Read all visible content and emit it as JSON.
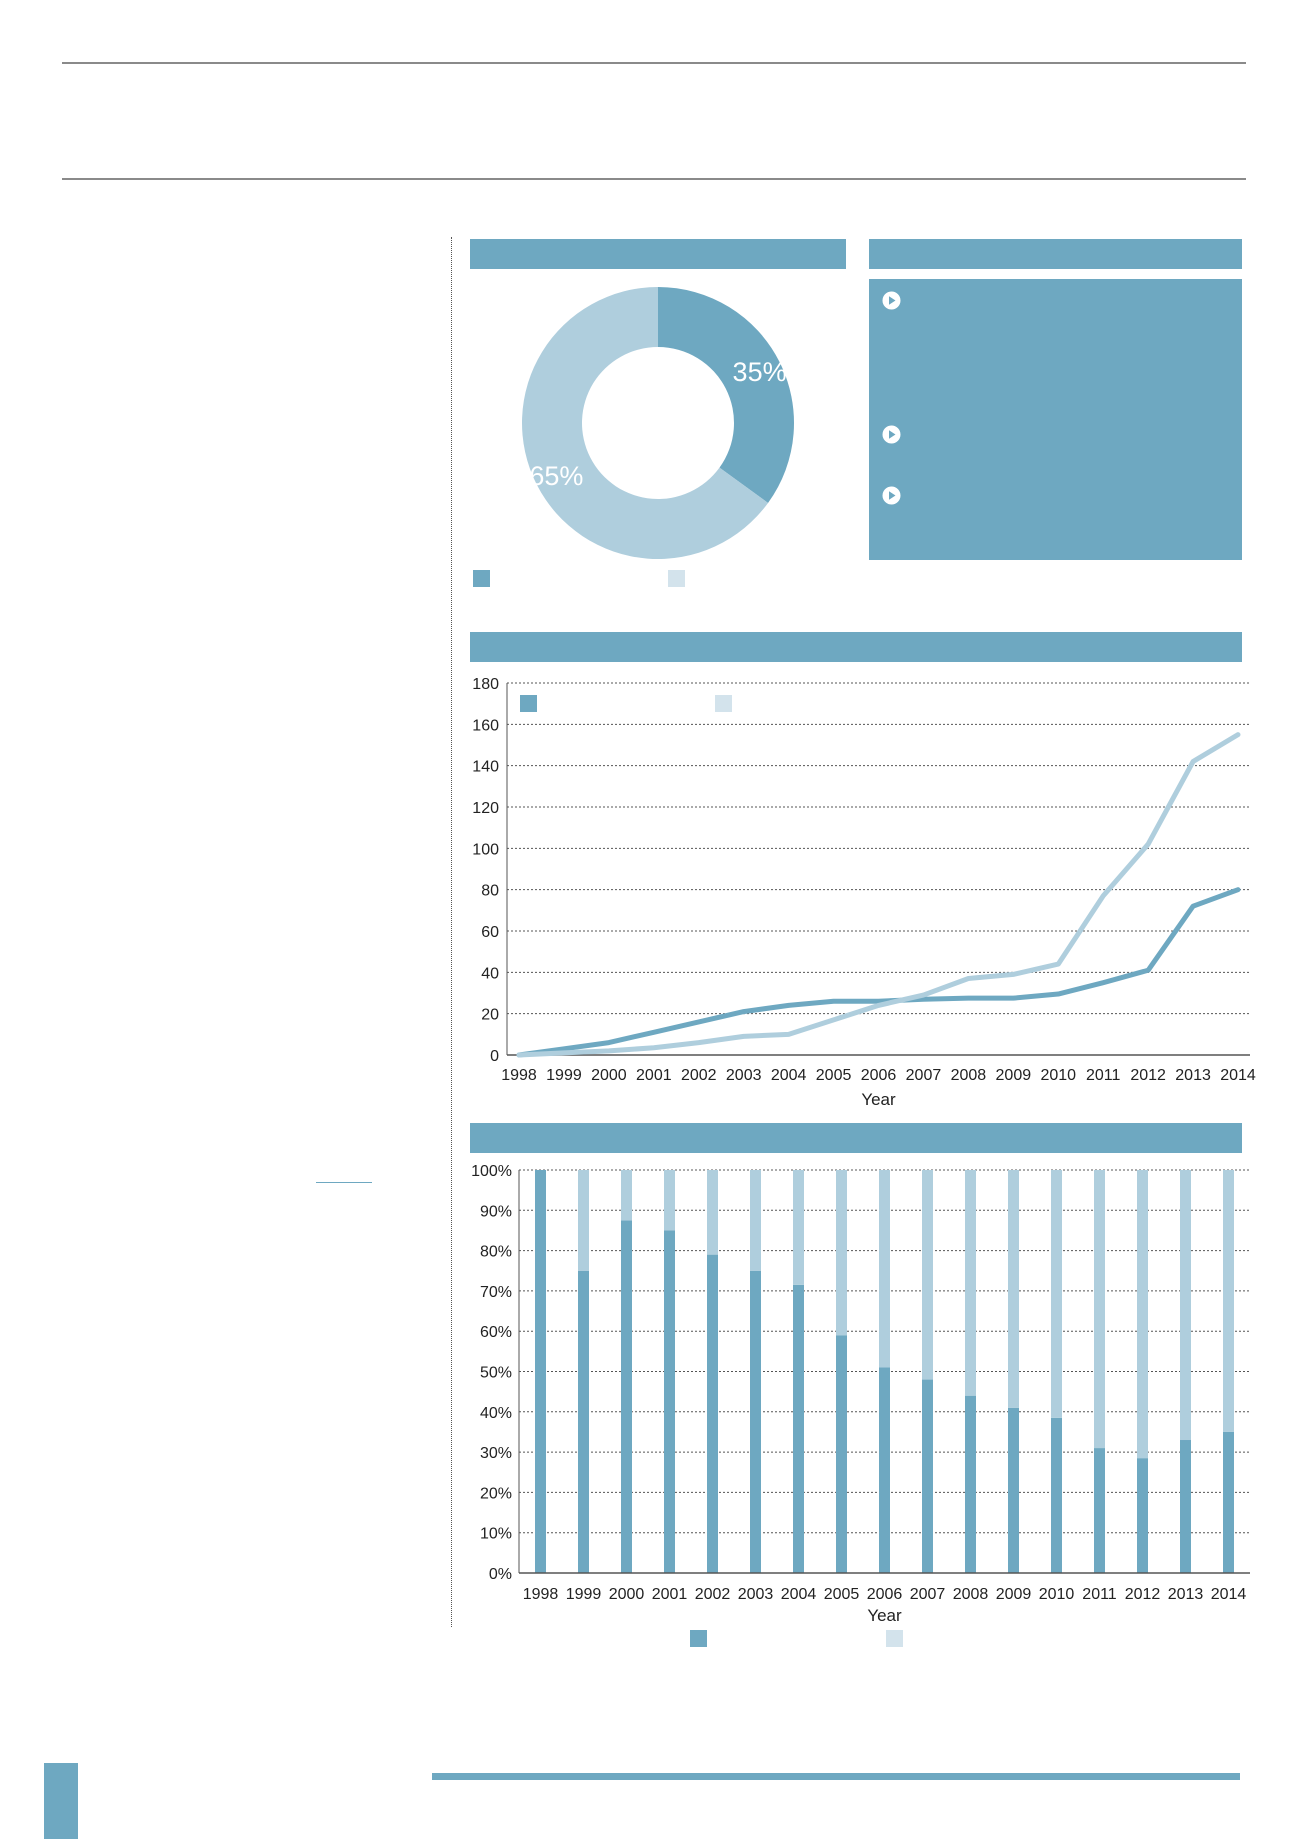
{
  "colors": {
    "primary": "#6ea8c1",
    "secondary": "#afcedd",
    "legend_light": "#d3e3ec",
    "rule": "#8a8a8a"
  },
  "icons": {
    "bullet": "play-circle-icon"
  },
  "donut": {
    "chart_data": {
      "type": "pie",
      "slices": [
        {
          "value": 35,
          "label": "35%",
          "color": "#6ea8c1"
        },
        {
          "value": 65,
          "label": "65%",
          "color": "#afcedd"
        }
      ]
    }
  },
  "notes_panel": {
    "bullet_count": 3
  },
  "line": {
    "chart_data": {
      "type": "line",
      "x": [
        1998,
        1999,
        2000,
        2001,
        2002,
        2003,
        2004,
        2005,
        2006,
        2007,
        2008,
        2009,
        2010,
        2011,
        2012,
        2013,
        2014
      ],
      "series": [
        {
          "values": [
            0,
            3,
            6,
            11,
            16,
            21,
            24,
            26,
            26,
            27,
            27.5,
            27.5,
            29.5,
            35,
            41,
            72,
            80
          ],
          "color": "#6ea8c1"
        },
        {
          "values": [
            0,
            1,
            2,
            3.5,
            6,
            9,
            10,
            17,
            24,
            29,
            37,
            39,
            44,
            77,
            102,
            142,
            155
          ],
          "color": "#afcedd"
        }
      ],
      "xlabel": "Year",
      "ylim": [
        0,
        180
      ],
      "yticks": [
        0,
        20,
        40,
        60,
        80,
        100,
        120,
        140,
        160,
        180
      ],
      "grid": true
    }
  },
  "stacked": {
    "chart_data": {
      "type": "bar",
      "stacked": true,
      "categories": [
        "1998",
        "1999",
        "2000",
        "2001",
        "2002",
        "2003",
        "2004",
        "2005",
        "2006",
        "2007",
        "2008",
        "2009",
        "2010",
        "2011",
        "2012",
        "2013",
        "2014"
      ],
      "series": [
        {
          "values": [
            100,
            75,
            87.5,
            85,
            79,
            75,
            71.5,
            59,
            51,
            48,
            44,
            41,
            38.5,
            31,
            28.5,
            33,
            35
          ],
          "color": "#6ea8c1"
        },
        {
          "values": [
            0,
            25,
            12.5,
            15,
            21,
            25,
            28.5,
            41,
            49,
            52,
            56,
            59,
            61.5,
            69,
            71.5,
            67,
            65
          ],
          "color": "#afcedd"
        }
      ],
      "xlabel": "Year",
      "ylim": [
        0,
        100
      ],
      "yticks": [
        "0%",
        "10%",
        "20%",
        "30%",
        "40%",
        "50%",
        "60%",
        "70%",
        "80%",
        "90%",
        "100%"
      ],
      "grid": true
    }
  }
}
